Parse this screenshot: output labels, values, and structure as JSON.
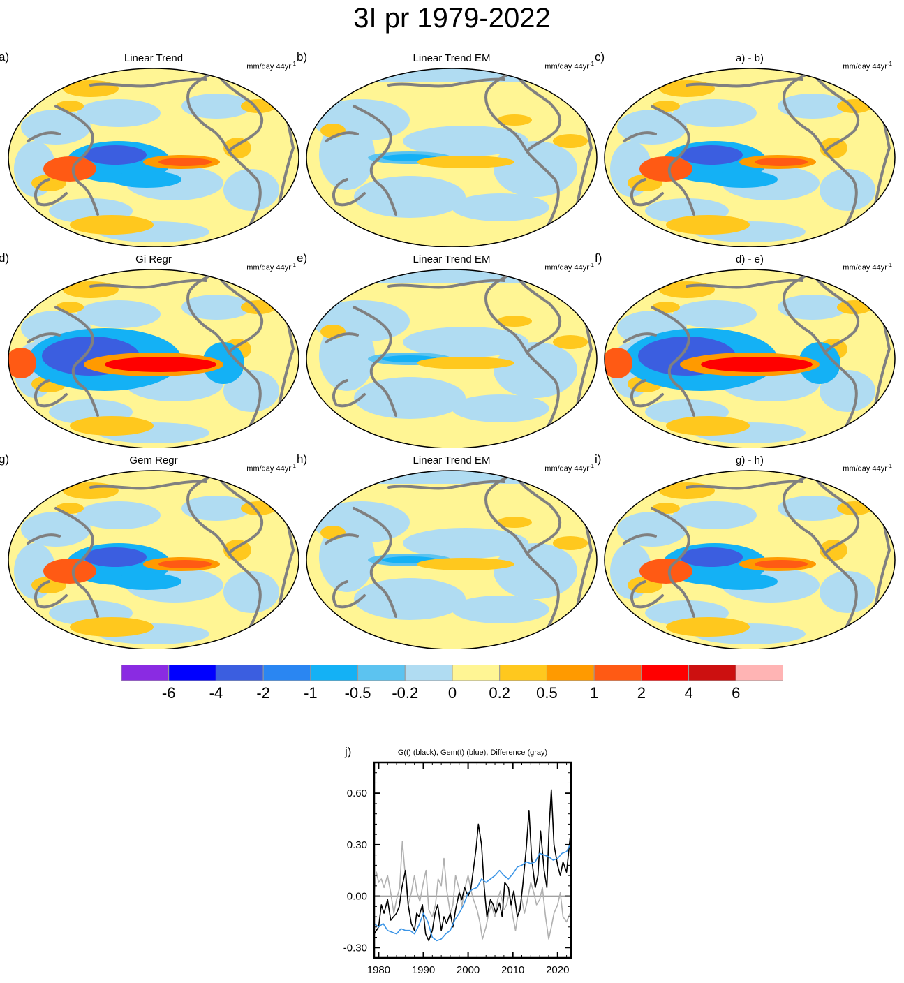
{
  "title": "3I pr 1979-2022",
  "units": "mm/day 44yr",
  "units_sup": "-1",
  "panels": [
    {
      "label": "a)",
      "title": "Linear Trend",
      "kind": "obs"
    },
    {
      "label": "b)",
      "title": "Linear Trend EM",
      "kind": "em"
    },
    {
      "label": "c)",
      "title": "a) - b)",
      "kind": "diff"
    },
    {
      "label": "d)",
      "title": "Gi Regr",
      "kind": "regr"
    },
    {
      "label": "e)",
      "title": "Linear Trend EM",
      "kind": "em"
    },
    {
      "label": "f)",
      "title": "d) - e)",
      "kind": "regr"
    },
    {
      "label": "g)",
      "title": "Gem Regr",
      "kind": "obs"
    },
    {
      "label": "h)",
      "title": "Linear Trend EM",
      "kind": "em"
    },
    {
      "label": "i)",
      "title": "g) - h)",
      "kind": "diff"
    }
  ],
  "colorbar": {
    "colors": [
      "#8a2be2",
      "#0000ff",
      "#3b5ee0",
      "#2a86f2",
      "#14b1f5",
      "#5cc3f0",
      "#b0dcf2",
      "#fff594",
      "#ffc81e",
      "#ff9a00",
      "#ff5a14",
      "#ff0000",
      "#cc1010",
      "#ffb4b4"
    ],
    "ticks": [
      "-6",
      "-4",
      "-2",
      "-1",
      "-0.5",
      "-0.2",
      "0",
      "0.2",
      "0.5",
      "1",
      "2",
      "4",
      "6"
    ]
  },
  "colors": {
    "land": "#808080",
    "zero_line": "#000000"
  },
  "chart_data": {
    "type": "line",
    "panel_label": "j)",
    "title": "G(t)  (black), Gem(t) (blue), Difference (gray)",
    "xlim": [
      1979,
      2023
    ],
    "ylim": [
      -0.36,
      0.78
    ],
    "xticks": [
      1980,
      1990,
      2000,
      2010,
      2020
    ],
    "yticks": [
      -0.3,
      0.0,
      0.3,
      0.6
    ],
    "ytick_labels": [
      "-0.30",
      "0.00",
      "0.30",
      "0.60"
    ],
    "hline": 0,
    "series": [
      {
        "name": "Difference",
        "color": "#b0b0b0",
        "x": [
          1979,
          1979.5,
          1980,
          1980.6,
          1981.2,
          1982,
          1982.7,
          1983.4,
          1984,
          1984.7,
          1985.3,
          1986,
          1986.6,
          1987.3,
          1988,
          1988.6,
          1989.2,
          1990,
          1990.6,
          1991.2,
          1992,
          1992.7,
          1993.3,
          1994,
          1994.6,
          1995.2,
          1996,
          1996.6,
          1997.2,
          1998,
          1998.6,
          1999.3,
          2000,
          2000.6,
          2001.2,
          2002,
          2002.6,
          2003.2,
          2004,
          2004.6,
          2005.2,
          2006,
          2006.6,
          2007.2,
          2008,
          2008.6,
          2009.2,
          2010,
          2010.6,
          2011.3,
          2012,
          2012.6,
          2013.2,
          2014,
          2014.7,
          2015.3,
          2016,
          2016.6,
          2017.3,
          2018,
          2018.6,
          2019.2,
          2020,
          2020.6,
          2021.2,
          2022,
          2022.8
        ],
        "y": [
          0.02,
          0.14,
          0.08,
          0.1,
          0.05,
          0.12,
          0.02,
          -0.1,
          -0.02,
          0.05,
          0.32,
          0.1,
          -0.05,
          0.02,
          0.12,
          0.02,
          -0.03,
          0.08,
          0.15,
          -0.08,
          -0.12,
          -0.05,
          0.1,
          0.06,
          0.22,
          0.04,
          -0.1,
          -0.05,
          0.12,
          0.04,
          -0.06,
          0.05,
          0.12,
          0.04,
          -0.02,
          -0.08,
          -0.15,
          -0.25,
          -0.18,
          -0.1,
          -0.05,
          -0.12,
          -0.02,
          0.03,
          -0.08,
          -0.05,
          0.02,
          -0.12,
          -0.2,
          -0.08,
          -0.02,
          -0.1,
          -0.03,
          0.08,
          0.02,
          -0.05,
          -0.02,
          0.05,
          -0.12,
          -0.25,
          -0.18,
          -0.1,
          -0.05,
          0.02,
          -0.12,
          -0.15,
          -0.1
        ]
      },
      {
        "name": "G(t)",
        "color": "#000000",
        "x": [
          1979,
          1979.5,
          1980,
          1980.6,
          1981.2,
          1982,
          1982.7,
          1983.3,
          1984,
          1984.6,
          1985.2,
          1986,
          1986.6,
          1987.3,
          1988,
          1988.5,
          1989,
          1989.8,
          1990.5,
          1991.2,
          1992,
          1992.6,
          1993.2,
          1994,
          1994.6,
          1995.2,
          1996,
          1996.6,
          1997.2,
          1998,
          1998.6,
          1999.2,
          2000,
          2000.6,
          2001.2,
          2001.8,
          2002.3,
          2003,
          2003.6,
          2004.2,
          2005,
          2005.6,
          2006.2,
          2007,
          2007.6,
          2008.2,
          2009,
          2009.6,
          2010.2,
          2011,
          2011.6,
          2012.2,
          2013,
          2013.6,
          2014.2,
          2015,
          2015.6,
          2016.2,
          2017,
          2017.6,
          2018.1,
          2018.6,
          2019.2,
          2020,
          2020.6,
          2021.2,
          2022,
          2022.8
        ],
        "y": [
          -0.22,
          -0.2,
          -0.18,
          -0.05,
          -0.1,
          -0.02,
          -0.14,
          -0.12,
          -0.1,
          -0.06,
          0.05,
          0.15,
          -0.05,
          -0.16,
          -0.2,
          -0.1,
          -0.12,
          -0.05,
          -0.22,
          -0.26,
          -0.2,
          -0.1,
          -0.05,
          -0.2,
          -0.12,
          -0.16,
          -0.1,
          -0.18,
          -0.08,
          0.02,
          -0.02,
          0.05,
          0.0,
          0.04,
          0.16,
          0.28,
          0.42,
          0.3,
          0.05,
          -0.12,
          -0.02,
          -0.05,
          -0.1,
          -0.04,
          -0.12,
          0.08,
          0.05,
          -0.05,
          0.03,
          -0.12,
          -0.08,
          0.06,
          0.28,
          0.5,
          0.22,
          0.05,
          0.12,
          0.38,
          0.15,
          0.05,
          0.4,
          0.62,
          0.3,
          0.18,
          0.12,
          0.2,
          0.14,
          0.34
        ]
      },
      {
        "name": "Gem(t)",
        "color": "#3a94e6",
        "x": [
          1979,
          1980,
          1981,
          1982,
          1983,
          1984,
          1985,
          1986,
          1987,
          1988,
          1989,
          1990,
          1991,
          1992,
          1993,
          1994,
          1995,
          1996,
          1997,
          1998,
          1999,
          2000,
          2001,
          2002,
          2003,
          2004,
          2005,
          2006,
          2007,
          2008,
          2009,
          2010,
          2011,
          2012,
          2013,
          2014,
          2015,
          2016,
          2017,
          2018,
          2019,
          2020,
          2021,
          2022,
          2022.8
        ],
        "y": [
          -0.16,
          -0.18,
          -0.16,
          -0.2,
          -0.21,
          -0.22,
          -0.19,
          -0.2,
          -0.2,
          -0.22,
          -0.17,
          -0.1,
          -0.15,
          -0.24,
          -0.26,
          -0.25,
          -0.22,
          -0.2,
          -0.14,
          -0.1,
          -0.05,
          0.02,
          0.04,
          0.05,
          0.1,
          0.08,
          0.1,
          0.12,
          0.15,
          0.12,
          0.1,
          0.13,
          0.17,
          0.18,
          0.2,
          0.19,
          0.2,
          0.25,
          0.24,
          0.23,
          0.21,
          0.22,
          0.25,
          0.26,
          0.3
        ]
      }
    ]
  }
}
